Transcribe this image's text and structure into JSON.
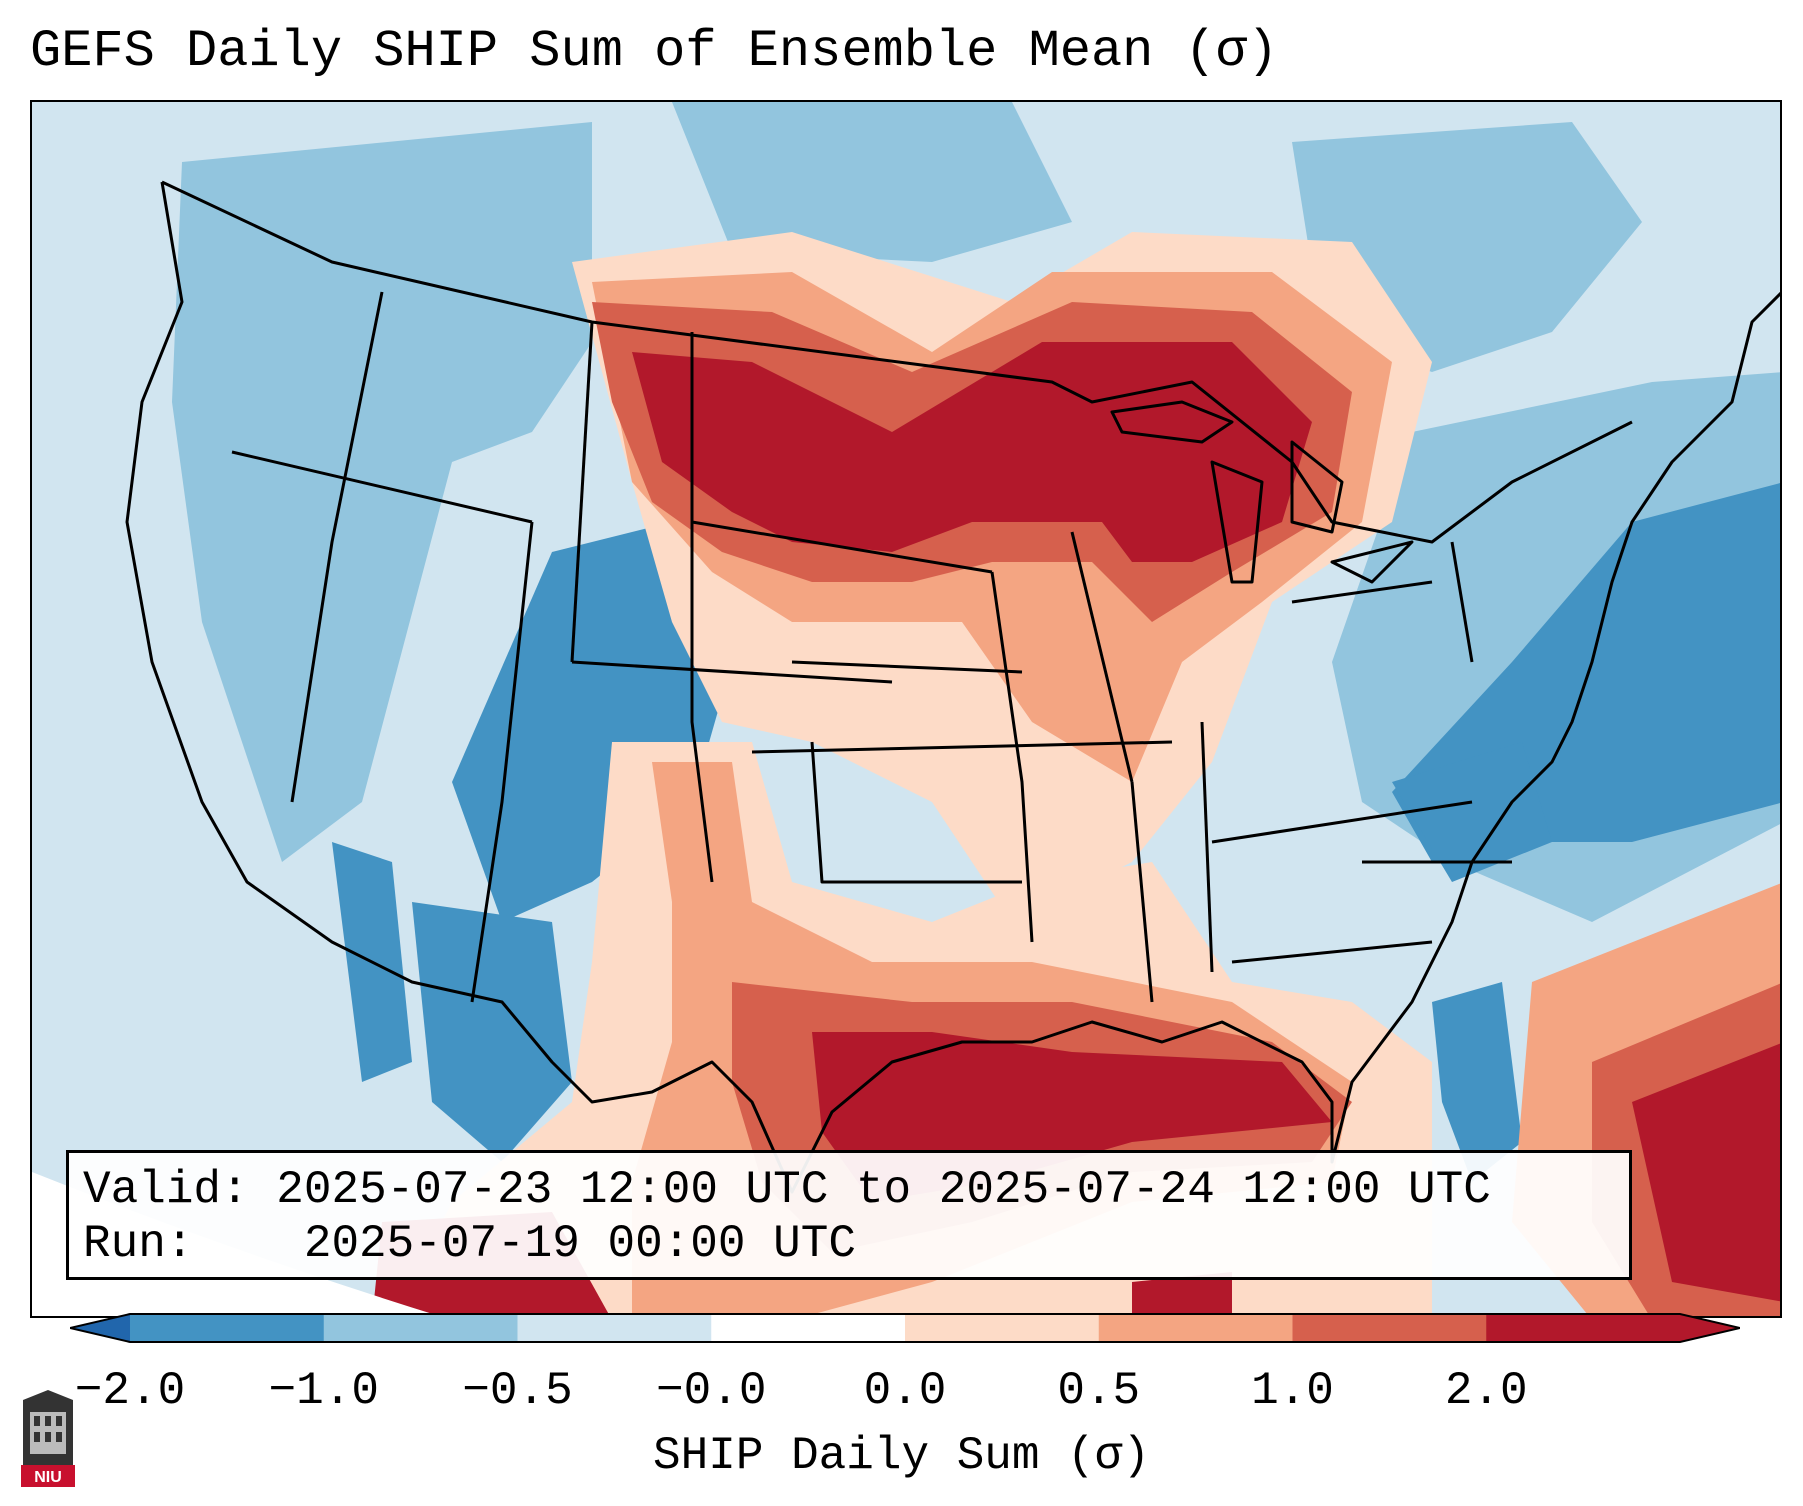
{
  "title": "GEFS Daily SHIP Sum of Ensemble Mean (σ)",
  "info_box": {
    "valid_label": "Valid:",
    "valid_value": "2025-07-23 12:00 UTC to 2025-07-24 12:00 UTC",
    "run_label": "Run:",
    "run_value": "2025-07-19 00:00 UTC"
  },
  "colorbar": {
    "label": "SHIP Daily Sum (σ)",
    "tick_labels": [
      "−2.0",
      "−1.0",
      "−0.5",
      "−0.0",
      "0.0",
      "0.5",
      "1.0",
      "2.0"
    ],
    "colors": [
      "#4393c3",
      "#92c5de",
      "#d1e5f0",
      "#ffffff",
      "#fddbc7",
      "#f4a582",
      "#d6604d",
      "#b2182b"
    ],
    "extend": "both",
    "underflow_color": "#2166ac",
    "overflow_color": "#b2182b"
  },
  "map": {
    "region": "Contiguous United States",
    "projection": "Lambert Conformal",
    "state_borders": true
  },
  "logo": {
    "text": "NIU"
  }
}
